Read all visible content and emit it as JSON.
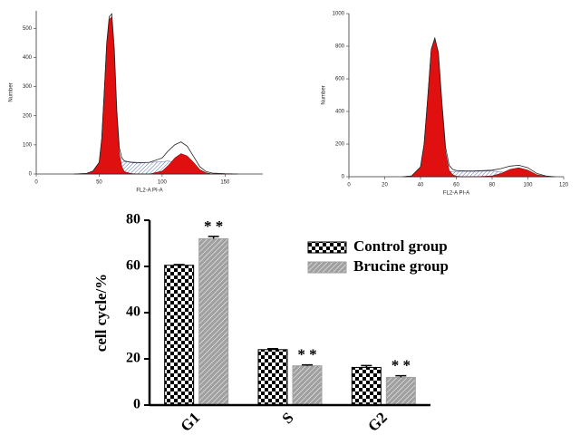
{
  "chart_data": [
    {
      "type": "flow-histogram",
      "xlabel": "FL2-A PI-A",
      "ylabel": "Number",
      "xlim": [
        0,
        180
      ],
      "xticks": [
        0,
        50,
        100,
        150
      ],
      "ylim": [
        0,
        560
      ],
      "yticks": [
        0,
        100,
        200,
        300,
        400,
        500
      ],
      "x": [
        30,
        40,
        45,
        50,
        52,
        54,
        56,
        58,
        60,
        62,
        64,
        66,
        68,
        70,
        75,
        80,
        90,
        100,
        105,
        110,
        115,
        120,
        125,
        130,
        135,
        140,
        150,
        160
      ],
      "series": [
        {
          "kind": "hatch",
          "color": "#5a6fb0",
          "values": [
            0,
            0,
            0,
            0,
            0,
            0,
            0,
            0,
            0,
            10,
            25,
            35,
            40,
            42,
            42,
            40,
            40,
            42,
            45,
            40,
            30,
            20,
            10,
            3,
            0,
            0,
            0,
            0
          ]
        },
        {
          "kind": "area",
          "color": "#e01010",
          "values": [
            0,
            2,
            10,
            40,
            120,
            280,
            450,
            530,
            540,
            420,
            200,
            70,
            25,
            8,
            2,
            0,
            0,
            0,
            0,
            0,
            0,
            0,
            0,
            0,
            0,
            0,
            0,
            0
          ]
        },
        {
          "kind": "area",
          "color": "#e01010",
          "values": [
            0,
            0,
            0,
            0,
            0,
            0,
            0,
            0,
            0,
            0,
            0,
            0,
            0,
            0,
            0,
            0,
            0,
            10,
            30,
            55,
            70,
            62,
            40,
            15,
            4,
            0,
            0,
            0
          ]
        },
        {
          "kind": "line",
          "color": "#222222",
          "values": [
            0,
            2,
            10,
            40,
            120,
            280,
            450,
            540,
            550,
            430,
            220,
            90,
            55,
            45,
            40,
            38,
            40,
            55,
            80,
            100,
            110,
            95,
            60,
            25,
            8,
            3,
            1,
            0
          ]
        }
      ]
    },
    {
      "type": "flow-histogram",
      "xlabel": "FL2-A PI-A",
      "ylabel": "Number",
      "xlim": [
        0,
        120
      ],
      "xticks": [
        0,
        20,
        40,
        60,
        80,
        100,
        120
      ],
      "ylim": [
        0,
        1000
      ],
      "yticks": [
        0,
        200,
        400,
        600,
        800,
        1000
      ],
      "x": [
        30,
        35,
        40,
        42,
        44,
        46,
        48,
        50,
        52,
        54,
        56,
        58,
        60,
        65,
        70,
        80,
        85,
        90,
        95,
        100,
        105,
        110,
        115
      ],
      "series": [
        {
          "kind": "hatch",
          "color": "#5a6fb0",
          "values": [
            0,
            0,
            0,
            0,
            0,
            0,
            0,
            0,
            0,
            20,
            30,
            32,
            33,
            33,
            33,
            35,
            30,
            20,
            15,
            10,
            5,
            0,
            0
          ]
        },
        {
          "kind": "area",
          "color": "#e01010",
          "values": [
            0,
            5,
            60,
            200,
            480,
            780,
            850,
            750,
            430,
            150,
            40,
            12,
            3,
            0,
            0,
            0,
            0,
            0,
            0,
            0,
            0,
            0,
            0
          ]
        },
        {
          "kind": "area",
          "color": "#e01010",
          "values": [
            0,
            0,
            0,
            0,
            0,
            0,
            0,
            0,
            0,
            0,
            0,
            0,
            0,
            0,
            0,
            5,
            20,
            45,
            55,
            40,
            12,
            2,
            0
          ]
        },
        {
          "kind": "line",
          "color": "#222222",
          "values": [
            0,
            5,
            60,
            200,
            480,
            780,
            850,
            760,
            450,
            180,
            70,
            45,
            38,
            35,
            35,
            40,
            50,
            65,
            70,
            55,
            20,
            5,
            0
          ]
        }
      ]
    },
    {
      "type": "bar",
      "ylabel": "cell cycle/%",
      "categories": [
        "G1",
        "S",
        "G2"
      ],
      "ylim": [
        0,
        80
      ],
      "yticks": [
        0,
        20,
        40,
        60,
        80
      ],
      "legend": "top-right",
      "series": [
        {
          "name": "Control group",
          "color": "#000000",
          "pattern": "checker",
          "values": [
            60.5,
            24,
            16.3
          ],
          "errors": [
            0.3,
            0.4,
            0.8
          ]
        },
        {
          "name": "Brucine group",
          "color": "#a0a0a0",
          "pattern": "hatch",
          "values": [
            72,
            17,
            12
          ],
          "errors": [
            1,
            0.4,
            0.7
          ],
          "annotations": [
            "* *",
            "* *",
            "* *"
          ]
        }
      ]
    }
  ]
}
